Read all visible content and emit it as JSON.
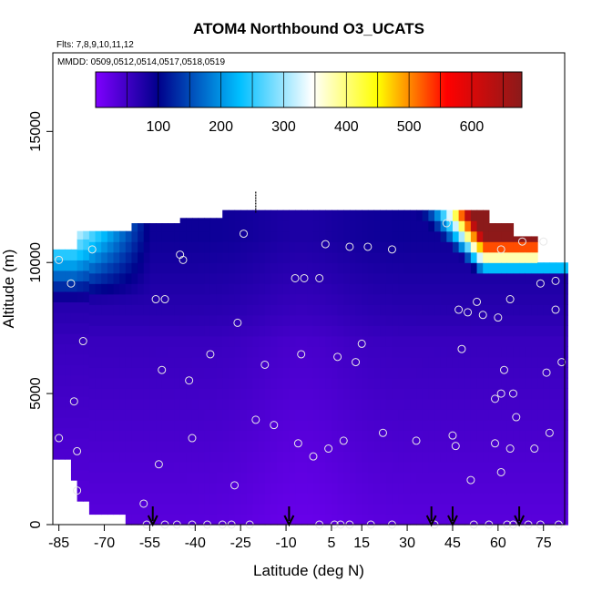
{
  "chart_data": {
    "type": "heatmap",
    "title": "ATOM4 Northbound O3_UCATS",
    "subtitle_flights": "Flts: 7,8,9,10,11,12",
    "subtitle_dates": "MMDD: 0509,0512,0514,0517,0518,0519",
    "xlabel": "Latitude (deg N)",
    "ylabel": "Altitude (m)",
    "xlim": [
      -87,
      82
    ],
    "ylim": [
      0,
      18000
    ],
    "x_ticks": [
      -85,
      -70,
      -55,
      -40,
      -25,
      -10,
      5,
      15,
      30,
      45,
      60,
      75
    ],
    "y_ticks": [
      0,
      5000,
      10000,
      15000
    ],
    "colorbar": {
      "ticks": [
        100,
        200,
        300,
        400,
        500,
        600
      ],
      "range": [
        0,
        680
      ],
      "colors": [
        "#7f00ff",
        "#00008b",
        "#00bfff",
        "#ffffff",
        "#ffff00",
        "#ff0000",
        "#8b1a1a"
      ]
    },
    "o3_levels_ppb": {
      "surface": 30,
      "free_troposphere": 60,
      "upper_troposphere": 90,
      "tropopause_max": 650
    },
    "arrow_latitudes": [
      -54,
      -9,
      38,
      45,
      67
    ],
    "sample_points": [
      [
        -85,
        10100
      ],
      [
        -85,
        3300
      ],
      [
        -81,
        9200
      ],
      [
        -80,
        4700
      ],
      [
        -79,
        2800
      ],
      [
        -79,
        1300
      ],
      [
        -77,
        7000
      ],
      [
        -74,
        10500
      ],
      [
        -57,
        800
      ],
      [
        -56,
        0
      ],
      [
        -53,
        8600
      ],
      [
        -52,
        2300
      ],
      [
        -51,
        5900
      ],
      [
        -50,
        8600
      ],
      [
        -50,
        0
      ],
      [
        -46,
        0
      ],
      [
        -45,
        10300
      ],
      [
        -44,
        10100
      ],
      [
        -42,
        5500
      ],
      [
        -41,
        3300
      ],
      [
        -41,
        0
      ],
      [
        -36,
        0
      ],
      [
        -35,
        6500
      ],
      [
        -31,
        0
      ],
      [
        -28,
        0
      ],
      [
        -27,
        1500
      ],
      [
        -26,
        7700
      ],
      [
        -24,
        11100
      ],
      [
        -22,
        0
      ],
      [
        -20,
        4000
      ],
      [
        -17,
        6100
      ],
      [
        -14,
        3800
      ],
      [
        -7,
        9400
      ],
      [
        -6,
        3100
      ],
      [
        -5,
        6500
      ],
      [
        -4,
        9400
      ],
      [
        -1,
        2600
      ],
      [
        1,
        0
      ],
      [
        1,
        9400
      ],
      [
        3,
        10700
      ],
      [
        4,
        2900
      ],
      [
        6,
        0
      ],
      [
        7,
        6400
      ],
      [
        8,
        0
      ],
      [
        9,
        3200
      ],
      [
        11,
        0
      ],
      [
        11,
        10600
      ],
      [
        13,
        6200
      ],
      [
        15,
        6900
      ],
      [
        17,
        10600
      ],
      [
        18,
        0
      ],
      [
        22,
        3500
      ],
      [
        25,
        10500
      ],
      [
        25,
        0
      ],
      [
        33,
        3200
      ],
      [
        39,
        0
      ],
      [
        43,
        11500
      ],
      [
        45,
        3400
      ],
      [
        46,
        3000
      ],
      [
        47,
        8200
      ],
      [
        48,
        6700
      ],
      [
        50,
        8100
      ],
      [
        51,
        1700
      ],
      [
        52,
        0
      ],
      [
        53,
        8500
      ],
      [
        55,
        8000
      ],
      [
        57,
        0
      ],
      [
        59,
        3100
      ],
      [
        59,
        4800
      ],
      [
        60,
        7900
      ],
      [
        61,
        2000
      ],
      [
        61,
        5000
      ],
      [
        61,
        10500
      ],
      [
        62,
        5900
      ],
      [
        63,
        0
      ],
      [
        64,
        2900
      ],
      [
        64,
        8600
      ],
      [
        65,
        5000
      ],
      [
        65,
        0
      ],
      [
        66,
        4100
      ],
      [
        68,
        10800
      ],
      [
        70,
        0
      ],
      [
        72,
        2900
      ],
      [
        74,
        9200
      ],
      [
        74,
        0
      ],
      [
        75,
        10800
      ],
      [
        76,
        5800
      ],
      [
        77,
        3500
      ],
      [
        79,
        8200
      ],
      [
        79,
        9300
      ],
      [
        80,
        0
      ],
      [
        81,
        6200
      ]
    ]
  }
}
